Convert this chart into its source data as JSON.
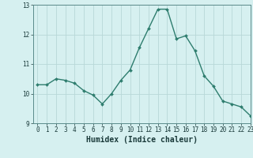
{
  "x": [
    0,
    1,
    2,
    3,
    4,
    5,
    6,
    7,
    8,
    9,
    10,
    11,
    12,
    13,
    14,
    15,
    16,
    17,
    18,
    19,
    20,
    21,
    22,
    23
  ],
  "y": [
    10.3,
    10.3,
    10.5,
    10.45,
    10.35,
    10.1,
    9.95,
    9.65,
    10.0,
    10.45,
    10.8,
    11.55,
    12.2,
    12.85,
    12.85,
    11.85,
    11.95,
    11.45,
    10.6,
    10.25,
    9.75,
    9.65,
    9.55,
    9.25
  ],
  "line_color": "#2e7d6e",
  "marker": "D",
  "marker_size": 2.0,
  "bg_color": "#d6f0f0",
  "grid_color": "#b8d8d8",
  "xlabel": "Humidex (Indice chaleur)",
  "ylim": [
    9,
    13
  ],
  "xlim": [
    -0.5,
    23
  ],
  "yticks": [
    9,
    10,
    11,
    12,
    13
  ],
  "xticks": [
    0,
    1,
    2,
    3,
    4,
    5,
    6,
    7,
    8,
    9,
    10,
    11,
    12,
    13,
    14,
    15,
    16,
    17,
    18,
    19,
    20,
    21,
    22,
    23
  ],
  "tick_fontsize": 5.5,
  "xlabel_fontsize": 7.0,
  "line_width": 1.0
}
